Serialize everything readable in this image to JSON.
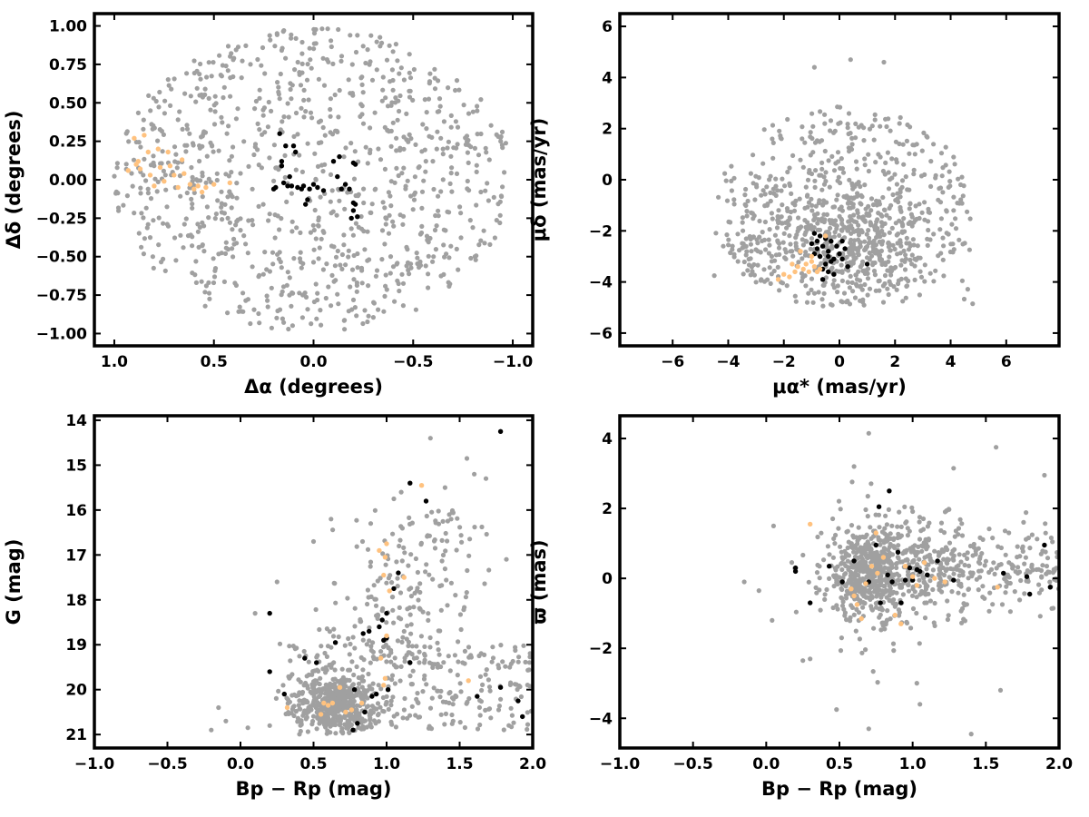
{
  "colors": {
    "background_points": "#a0a0a0",
    "member_points": "#000000",
    "tail_points": "#ffc27f",
    "frame": "#000000"
  },
  "chart_data": [
    {
      "id": "radec",
      "type": "scatter",
      "xlabel": "Δα (degrees)",
      "ylabel": "Δδ (degrees)",
      "xlim": [
        1.1,
        -1.1
      ],
      "ylim": [
        -1.08,
        1.08
      ],
      "x_reversed": true,
      "xticks": [
        1.0,
        0.5,
        0.0,
        -0.5,
        -1.0
      ],
      "xtick_labels": [
        "1.0",
        "0.5",
        "0.0",
        "−0.5",
        "−1.0"
      ],
      "yticks": [
        1.0,
        0.75,
        0.5,
        0.25,
        0.0,
        -0.25,
        -0.5,
        -0.75,
        -1.0
      ],
      "ytick_labels": [
        "1.00",
        "0.75",
        "0.50",
        "0.25",
        "0.00",
        "−0.25",
        "−0.50",
        "−0.75",
        "−1.00"
      ],
      "grid": false,
      "series": [
        {
          "role": "field",
          "color": "#a0a0a0",
          "distribution": "uniform disk of radius 1.0 deg, ~950 stars"
        },
        {
          "role": "members",
          "color": "#000000",
          "points": [
            [
              0.2,
              -0.06
            ],
            [
              0.19,
              -0.05
            ],
            [
              0.17,
              0.3
            ],
            [
              0.16,
              0.12
            ],
            [
              0.16,
              0.09
            ],
            [
              0.15,
              -0.02
            ],
            [
              0.14,
              0.22
            ],
            [
              0.13,
              -0.04
            ],
            [
              0.12,
              0.02
            ],
            [
              0.11,
              -0.04
            ],
            [
              0.1,
              0.22
            ],
            [
              0.09,
              0.18
            ],
            [
              0.08,
              -0.05
            ],
            [
              0.06,
              -0.06
            ],
            [
              0.05,
              -0.04
            ],
            [
              0.04,
              -0.16
            ],
            [
              0.03,
              -0.13
            ],
            [
              0.02,
              -0.06
            ],
            [
              0.0,
              -0.03
            ],
            [
              -0.02,
              -0.05
            ],
            [
              -0.05,
              -0.07
            ],
            [
              -0.1,
              0.12
            ],
            [
              -0.12,
              0.02
            ],
            [
              -0.13,
              0.15
            ],
            [
              -0.14,
              -0.06
            ],
            [
              -0.16,
              -0.03
            ],
            [
              -0.18,
              -0.06
            ],
            [
              -0.2,
              -0.15
            ],
            [
              -0.2,
              -0.2
            ],
            [
              -0.21,
              -0.16
            ],
            [
              -0.22,
              -0.24
            ],
            [
              -0.19,
              -0.25
            ],
            [
              -0.2,
              0.11
            ],
            [
              -0.21,
              0.1
            ]
          ]
        },
        {
          "role": "tail",
          "color": "#ffc27f",
          "points": [
            [
              0.9,
              0.27
            ],
            [
              0.88,
              0.12
            ],
            [
              0.87,
              0.07
            ],
            [
              0.85,
              0.29
            ],
            [
              0.83,
              0.18
            ],
            [
              0.82,
              0.03
            ],
            [
              0.8,
              -0.04
            ],
            [
              0.78,
              0.2
            ],
            [
              0.77,
              0.08
            ],
            [
              0.75,
              -0.01
            ],
            [
              0.73,
              0.18
            ],
            [
              0.72,
              0.09
            ],
            [
              0.7,
              0.03
            ],
            [
              0.68,
              -0.05
            ],
            [
              0.66,
              0.13
            ],
            [
              0.65,
              0.04
            ],
            [
              0.62,
              -0.03
            ],
            [
              0.6,
              -0.06
            ],
            [
              0.58,
              -0.04
            ],
            [
              0.56,
              -0.08
            ],
            [
              0.54,
              -0.05
            ],
            [
              0.5,
              -0.03
            ],
            [
              0.42,
              -0.02
            ],
            [
              0.93,
              0.06
            ],
            [
              0.89,
              0.1
            ]
          ]
        }
      ]
    },
    {
      "id": "pm",
      "type": "scatter",
      "xlabel": "μα* (mas/yr)",
      "ylabel": "μδ (mas/yr)",
      "xlim": [
        -7.9,
        7.9
      ],
      "ylim": [
        -6.5,
        6.5
      ],
      "xticks": [
        -6,
        -4,
        -2,
        0,
        2,
        4,
        6
      ],
      "xtick_labels": [
        "−6",
        "−4",
        "−2",
        "0",
        "2",
        "4",
        "6"
      ],
      "yticks": [
        6,
        4,
        2,
        0,
        -2,
        -4,
        -6
      ],
      "ytick_labels": [
        "6",
        "4",
        "2",
        "0",
        "−2",
        "−4",
        "−6"
      ],
      "grid": false,
      "series": [
        {
          "role": "field",
          "color": "#a0a0a0",
          "distribution": "elliptical cloud centered (0.5,-1.5), spanning x -4.7 to 4.9, y -5 to 4.7, ~950 stars"
        },
        {
          "role": "members",
          "color": "#000000",
          "points": [
            [
              -0.9,
              -2.1
            ],
            [
              -0.8,
              -2.4
            ],
            [
              -0.7,
              -2.2
            ],
            [
              -0.6,
              -2.6
            ],
            [
              -0.5,
              -2.3
            ],
            [
              -0.4,
              -2.8
            ],
            [
              -0.3,
              -2.4
            ],
            [
              -0.2,
              -3.1
            ],
            [
              -0.1,
              -2.6
            ],
            [
              0.0,
              -2.9
            ],
            [
              0.1,
              -3.1
            ],
            [
              0.2,
              -2.7
            ],
            [
              0.3,
              -3.4
            ],
            [
              -0.5,
              -3.3
            ],
            [
              -0.4,
              -3.6
            ],
            [
              -0.6,
              -3.5
            ],
            [
              -1.0,
              -2.5
            ],
            [
              -0.9,
              -2.9
            ],
            [
              -0.7,
              -3.0
            ],
            [
              -0.2,
              -3.7
            ],
            [
              1.0,
              -3.3
            ],
            [
              -0.6,
              -3.9
            ],
            [
              -0.3,
              -3.2
            ],
            [
              -0.8,
              -2.7
            ],
            [
              0.1,
              -2.4
            ],
            [
              -0.4,
              -3.0
            ]
          ]
        },
        {
          "role": "tail",
          "color": "#ffc27f",
          "points": [
            [
              -2.2,
              -3.9
            ],
            [
              -2.0,
              -3.7
            ],
            [
              -1.8,
              -3.8
            ],
            [
              -1.6,
              -3.6
            ],
            [
              -1.5,
              -3.4
            ],
            [
              -1.3,
              -3.5
            ],
            [
              -1.2,
              -3.3
            ],
            [
              -1.1,
              -3.6
            ],
            [
              -1.0,
              -3.2
            ],
            [
              -0.9,
              -3.4
            ],
            [
              -0.8,
              -3.6
            ],
            [
              -1.4,
              -2.8
            ],
            [
              -1.0,
              -3.0
            ],
            [
              -0.5,
              -2.2
            ],
            [
              -0.7,
              -3.5
            ],
            [
              -1.7,
              -3.3
            ]
          ]
        }
      ]
    },
    {
      "id": "cmd",
      "type": "scatter",
      "xlabel": "Bp − Rp (mag)",
      "ylabel": "G (mag)",
      "xlim": [
        -1.0,
        2.0
      ],
      "ylim": [
        13.9,
        21.3
      ],
      "y_reversed": true,
      "xticks": [
        -1.0,
        -0.5,
        0.0,
        0.5,
        1.0,
        1.5,
        2.0
      ],
      "xtick_labels": [
        "−1.0",
        "−0.5",
        "0.0",
        "0.5",
        "1.0",
        "1.5",
        "2.0"
      ],
      "yticks": [
        21,
        20,
        19,
        18,
        17,
        16,
        15,
        14
      ],
      "ytick_labels": [
        "21",
        "20",
        "19",
        "18",
        "17",
        "16",
        "15",
        "14"
      ],
      "grid": false,
      "series": [
        {
          "role": "field",
          "color": "#a0a0a0",
          "distribution": "dense clump near (0.65, 20.3), faint band to x 2.0 at G 19-21, sequence down to G~14.5"
        },
        {
          "role": "members",
          "color": "#000000",
          "points": [
            [
              0.2,
              19.6
            ],
            [
              0.2,
              18.3
            ],
            [
              0.3,
              20.1
            ],
            [
              0.44,
              19.3
            ],
            [
              0.52,
              19.4
            ],
            [
              0.65,
              18.95
            ],
            [
              0.77,
              20.9
            ],
            [
              0.8,
              20.75
            ],
            [
              0.85,
              20.5
            ],
            [
              0.9,
              20.15
            ],
            [
              0.93,
              20.1
            ],
            [
              0.84,
              18.75
            ],
            [
              0.88,
              18.7
            ],
            [
              0.95,
              18.6
            ],
            [
              0.97,
              18.45
            ],
            [
              1.0,
              18.85
            ],
            [
              1.01,
              20.0
            ],
            [
              1.0,
              18.3
            ],
            [
              1.05,
              17.75
            ],
            [
              1.08,
              17.4
            ],
            [
              1.16,
              19.4
            ],
            [
              1.16,
              15.4
            ],
            [
              1.27,
              15.8
            ],
            [
              1.62,
              20.15
            ],
            [
              1.78,
              19.95
            ],
            [
              1.9,
              20.25
            ],
            [
              1.93,
              20.6
            ],
            [
              1.78,
              14.25
            ],
            [
              0.98,
              18.9
            ],
            [
              0.78,
              20.0
            ]
          ]
        },
        {
          "role": "tail",
          "color": "#ffc27f",
          "points": [
            [
              0.32,
              20.4
            ],
            [
              0.55,
              20.55
            ],
            [
              0.57,
              20.3
            ],
            [
              0.6,
              20.35
            ],
            [
              0.63,
              20.3
            ],
            [
              0.68,
              19.95
            ],
            [
              0.72,
              20.5
            ],
            [
              0.76,
              20.45
            ],
            [
              0.83,
              20.3
            ],
            [
              0.98,
              19.9
            ],
            [
              0.99,
              19.75
            ],
            [
              0.96,
              19.3
            ],
            [
              1.0,
              18.8
            ],
            [
              1.02,
              17.8
            ],
            [
              0.98,
              17.45
            ],
            [
              0.99,
              17.05
            ],
            [
              1.0,
              16.75
            ],
            [
              1.12,
              17.5
            ],
            [
              1.24,
              15.45
            ],
            [
              1.56,
              19.8
            ],
            [
              0.95,
              16.9
            ]
          ]
        }
      ]
    },
    {
      "id": "plx",
      "type": "scatter",
      "xlabel": "Bp − Rp (mag)",
      "ylabel": "ϖ (mas)",
      "xlim": [
        -1.0,
        2.0
      ],
      "ylim": [
        -4.85,
        4.65
      ],
      "xticks": [
        -1.0,
        -0.5,
        0.0,
        0.5,
        1.0,
        1.5,
        2.0
      ],
      "xtick_labels": [
        "−1.0",
        "−0.5",
        "0.0",
        "0.5",
        "1.0",
        "1.5",
        "2.0"
      ],
      "yticks": [
        4,
        2,
        0,
        -2,
        -4
      ],
      "ytick_labels": [
        "4",
        "2",
        "0",
        "−2",
        "−4"
      ],
      "grid": false,
      "series": [
        {
          "role": "field",
          "color": "#a0a0a0",
          "distribution": "dense clump near (0.75, 0.2) spreading to x 2.0, y -4.5 to 4.2"
        },
        {
          "role": "members",
          "color": "#000000",
          "points": [
            [
              0.2,
              0.3
            ],
            [
              0.2,
              0.2
            ],
            [
              0.3,
              -0.7
            ],
            [
              0.43,
              0.35
            ],
            [
              0.52,
              -0.1
            ],
            [
              0.6,
              0.5
            ],
            [
              0.7,
              -0.1
            ],
            [
              0.75,
              0.95
            ],
            [
              0.77,
              2.05
            ],
            [
              0.78,
              -0.7
            ],
            [
              0.83,
              0.1
            ],
            [
              0.84,
              2.5
            ],
            [
              0.9,
              0.75
            ],
            [
              0.92,
              -0.7
            ],
            [
              0.95,
              -0.05
            ],
            [
              1.0,
              -0.05
            ],
            [
              1.03,
              0.25
            ],
            [
              1.05,
              0.2
            ],
            [
              1.1,
              0.1
            ],
            [
              1.17,
              0.5
            ],
            [
              1.28,
              -0.05
            ],
            [
              1.62,
              0.15
            ],
            [
              1.78,
              0.05
            ],
            [
              1.8,
              -0.45
            ],
            [
              1.9,
              0.95
            ],
            [
              1.94,
              -0.25
            ],
            [
              0.98,
              0.3
            ],
            [
              0.86,
              -0.1
            ]
          ]
        },
        {
          "role": "tail",
          "color": "#ffc27f",
          "points": [
            [
              0.3,
              1.55
            ],
            [
              0.58,
              -0.3
            ],
            [
              0.6,
              -0.5
            ],
            [
              0.62,
              -0.75
            ],
            [
              0.65,
              -1.15
            ],
            [
              0.72,
              0.35
            ],
            [
              0.75,
              1.3
            ],
            [
              0.76,
              0.15
            ],
            [
              0.8,
              0.6
            ],
            [
              0.88,
              -1.05
            ],
            [
              0.92,
              -1.3
            ],
            [
              0.95,
              0.35
            ],
            [
              1.0,
              0.05
            ],
            [
              1.03,
              -0.2
            ],
            [
              1.08,
              0.45
            ],
            [
              1.15,
              0.0
            ],
            [
              1.22,
              -0.1
            ],
            [
              1.58,
              -0.25
            ],
            [
              0.68,
              -0.15
            ]
          ]
        }
      ]
    }
  ]
}
